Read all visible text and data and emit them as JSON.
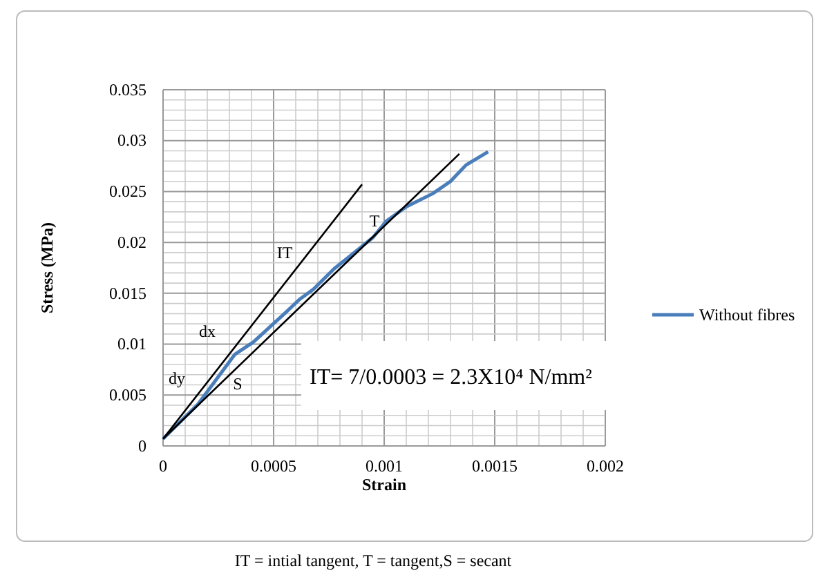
{
  "chart_data": {
    "type": "line",
    "xlabel": "Strain",
    "ylabel": "Stress (MPa)",
    "xlim": [
      0,
      0.002
    ],
    "xticks": [
      0,
      0.0005,
      0.001,
      0.0015,
      0.002
    ],
    "ylim": [
      0,
      0.035
    ],
    "yticks": [
      0,
      0.005,
      0.01,
      0.015,
      0.02,
      0.025,
      0.03,
      0.035
    ],
    "grid": true,
    "legend": "right",
    "marker": "none",
    "line_style": "solid",
    "series": [
      {
        "name": "Without fibres",
        "color": "#4a7ebb",
        "x": [
          0,
          0.000158,
          0.000325,
          0.000408,
          0.000554,
          0.000617,
          0.00068,
          0.000773,
          0.000888,
          0.00095,
          0.00101,
          0.0011,
          0.00122,
          0.0013,
          0.00137,
          0.00147
        ],
        "values": [
          0.0007,
          0.0041,
          0.009,
          0.0102,
          0.0131,
          0.0144,
          0.0154,
          0.0174,
          0.0194,
          0.0205,
          0.0221,
          0.0235,
          0.0248,
          0.026,
          0.0276,
          0.0289
        ]
      },
      {
        "type": "line",
        "color": "#000000",
        "x": [
          0,
          0.0009
        ],
        "values": [
          0.0007,
          0.0257
        ]
      },
      {
        "type": "line",
        "color": "#000000",
        "x": [
          0,
          0.00134
        ],
        "values": [
          0.0007,
          0.0287
        ]
      }
    ],
    "annotations": [
      "IT",
      "dx",
      "dy",
      "S",
      "T",
      "IT= 7/0.0003 = 2.3X10⁴ N/mm²",
      "IT = intial tangent, T = tangent,S = secant"
    ]
  }
}
